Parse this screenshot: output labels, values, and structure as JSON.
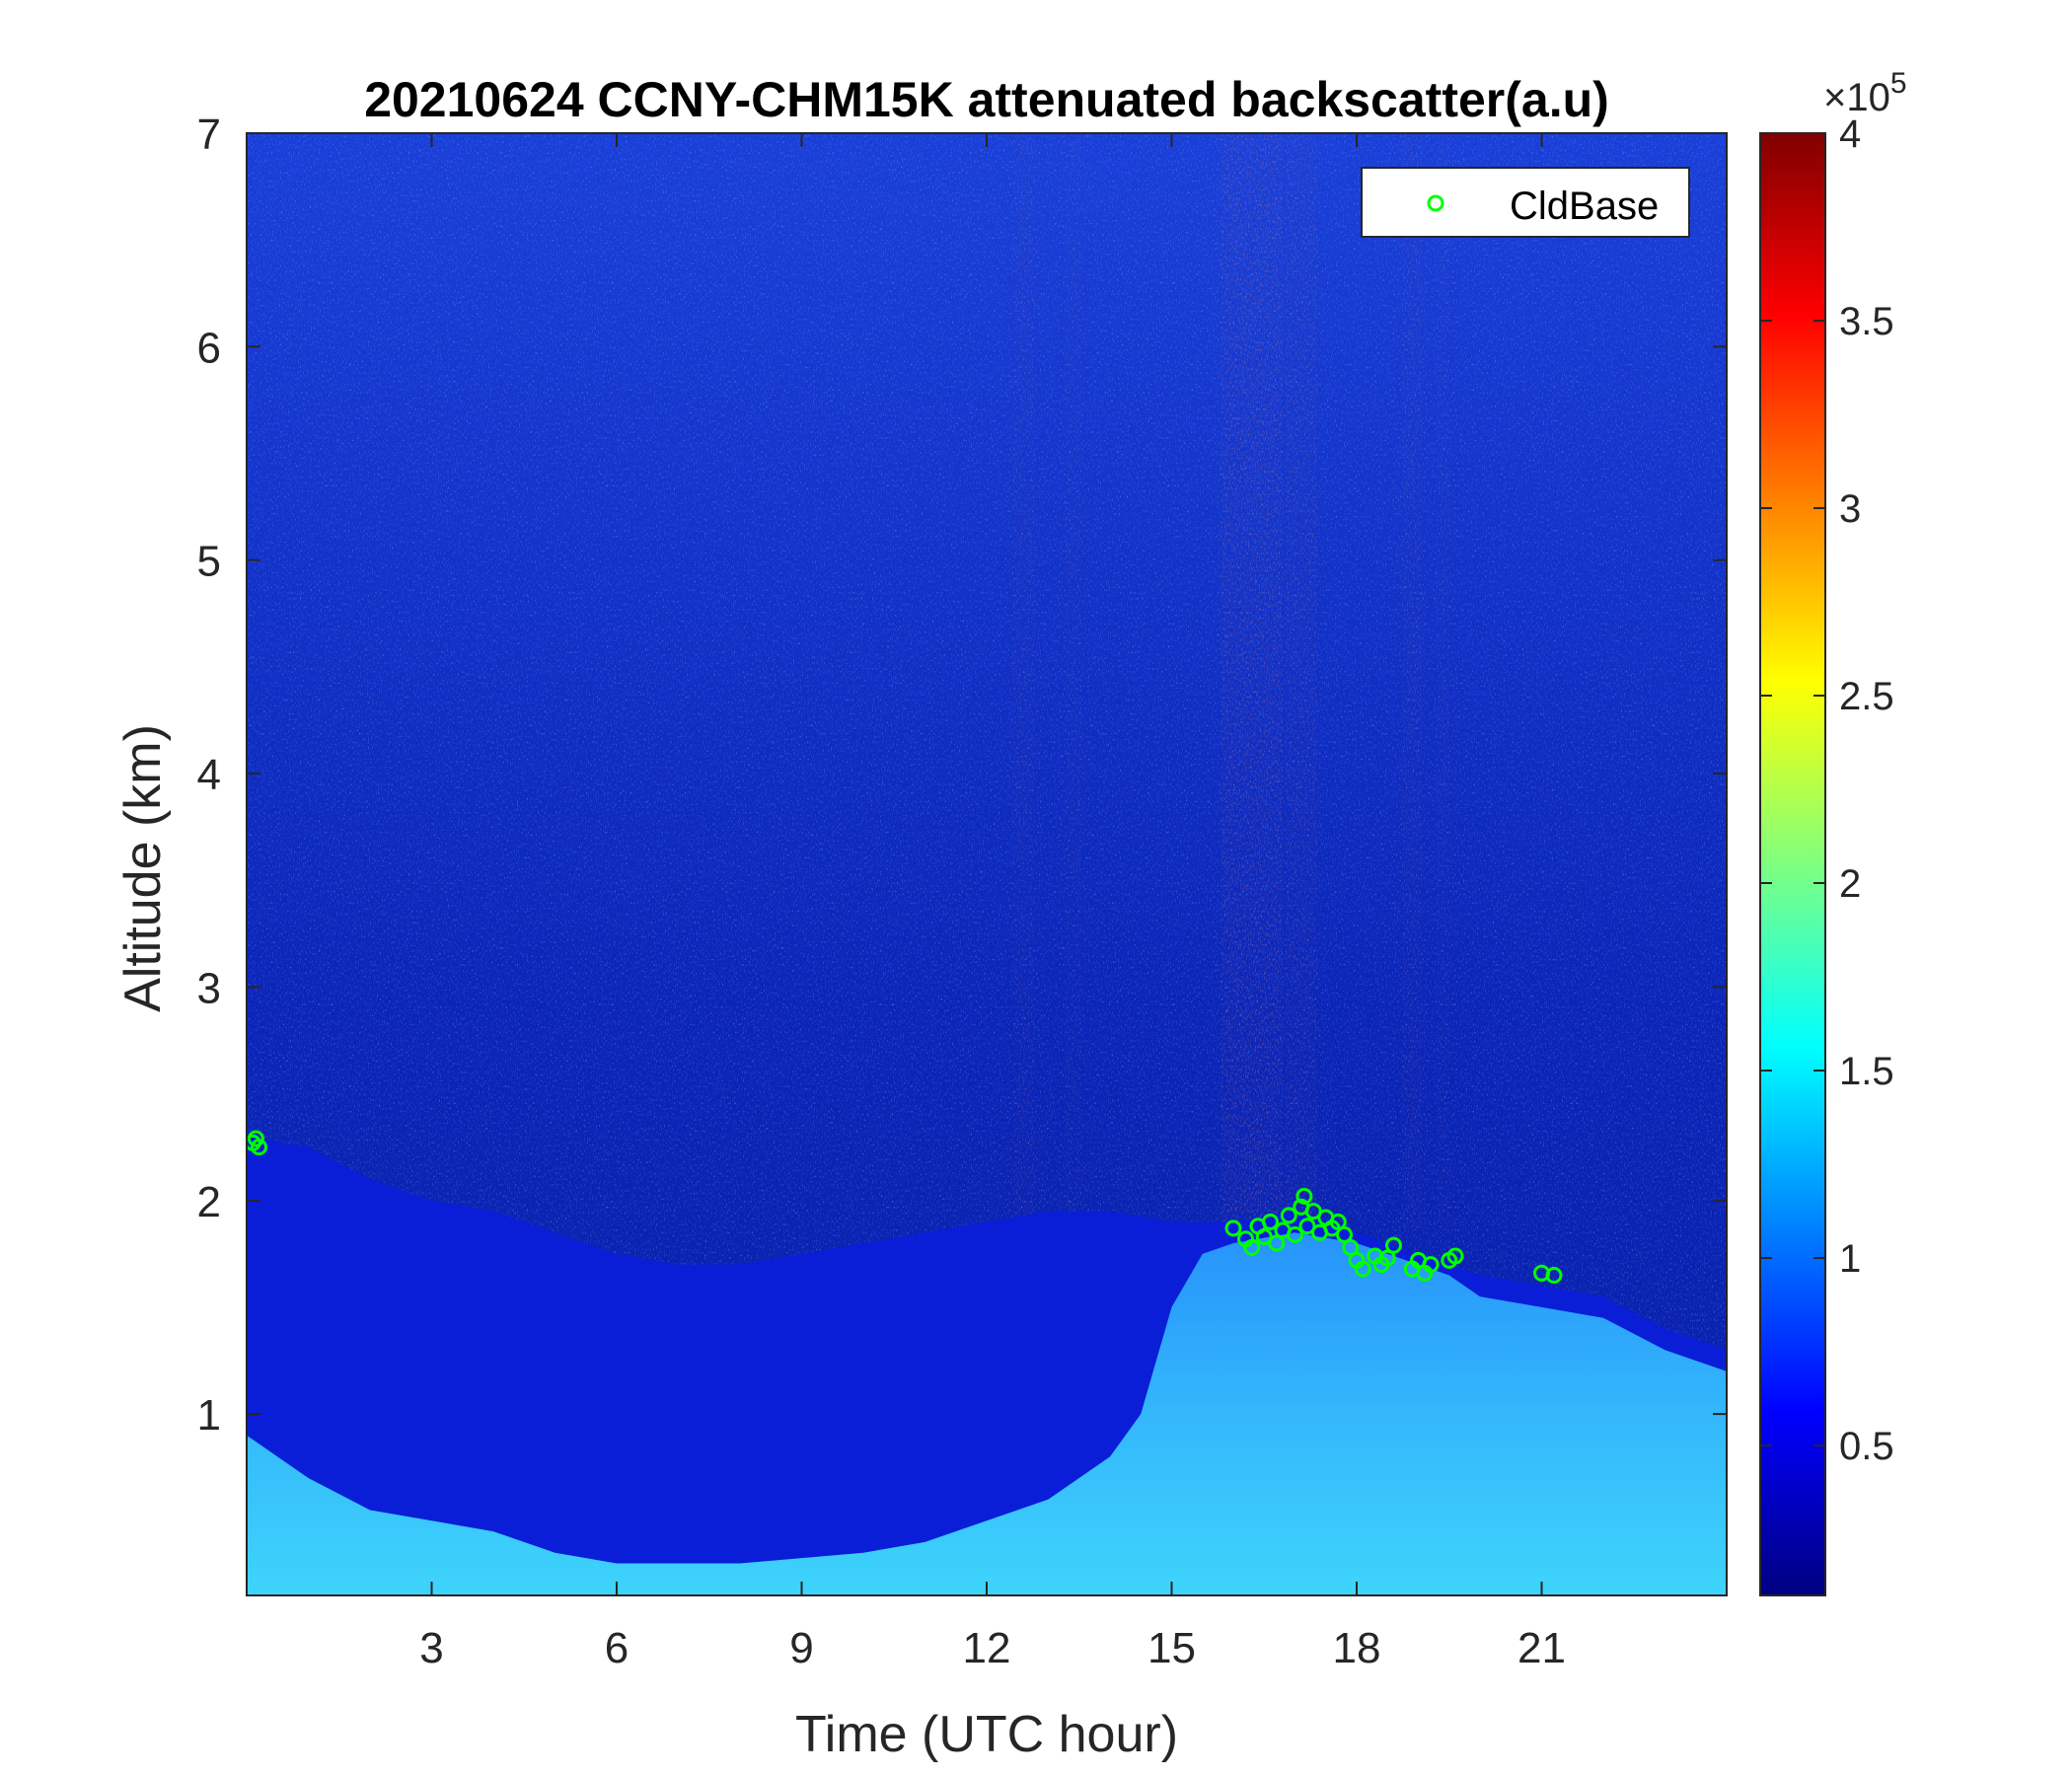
{
  "chart_data": {
    "type": "heatmap",
    "title": "20210624 CCNY-CHM15K attenuated backscatter(a.u)",
    "xlabel": "Time (UTC hour)",
    "ylabel": "Altitude (km)",
    "xlim": [
      0,
      24
    ],
    "ylim": [
      0.15,
      7
    ],
    "xticks": [
      3,
      6,
      9,
      12,
      15,
      18,
      21
    ],
    "yticks": [
      1,
      2,
      3,
      4,
      5,
      6,
      7
    ],
    "colorbar": {
      "colormap": "jet",
      "range": [
        0.1,
        4
      ],
      "ticks": [
        0.5,
        1,
        1.5,
        2,
        2.5,
        3,
        3.5,
        4
      ],
      "multiplier": "×10",
      "exponent": "5"
    },
    "boundary_layer_top_km": [
      [
        0,
        2.3
      ],
      [
        1,
        2.25
      ],
      [
        2,
        2.1
      ],
      [
        3,
        2.0
      ],
      [
        4,
        1.95
      ],
      [
        5,
        1.85
      ],
      [
        6,
        1.75
      ],
      [
        7,
        1.7
      ],
      [
        8,
        1.7
      ],
      [
        9,
        1.75
      ],
      [
        10,
        1.8
      ],
      [
        11,
        1.85
      ],
      [
        12,
        1.9
      ],
      [
        13,
        1.95
      ],
      [
        14,
        1.95
      ],
      [
        15,
        1.9
      ],
      [
        16,
        1.9
      ],
      [
        17,
        1.95
      ],
      [
        18,
        1.85
      ],
      [
        19,
        1.75
      ],
      [
        20,
        1.65
      ],
      [
        21,
        1.6
      ],
      [
        22,
        1.55
      ],
      [
        23,
        1.4
      ],
      [
        24,
        1.3
      ]
    ],
    "enhanced_aerosol_top_km": [
      [
        0,
        0.9
      ],
      [
        1,
        0.7
      ],
      [
        2,
        0.55
      ],
      [
        3,
        0.5
      ],
      [
        4,
        0.45
      ],
      [
        5,
        0.35
      ],
      [
        6,
        0.3
      ],
      [
        8,
        0.3
      ],
      [
        10,
        0.35
      ],
      [
        11,
        0.4
      ],
      [
        12,
        0.5
      ],
      [
        13,
        0.6
      ],
      [
        14,
        0.8
      ],
      [
        14.5,
        1.0
      ],
      [
        15,
        1.5
      ],
      [
        15.5,
        1.75
      ],
      [
        16,
        1.8
      ],
      [
        17,
        1.85
      ],
      [
        18,
        1.8
      ],
      [
        19,
        1.7
      ],
      [
        19.5,
        1.65
      ],
      [
        20,
        1.55
      ],
      [
        21,
        1.5
      ],
      [
        22,
        1.45
      ],
      [
        23,
        1.3
      ],
      [
        24,
        1.2
      ]
    ],
    "series": [
      {
        "name": "CldBase",
        "marker": "circle",
        "color": "#00ff00",
        "points": [
          [
            0.1,
            2.27
          ],
          [
            0.15,
            2.29
          ],
          [
            0.2,
            2.25
          ],
          [
            16.0,
            1.87
          ],
          [
            16.2,
            1.82
          ],
          [
            16.3,
            1.78
          ],
          [
            16.4,
            1.88
          ],
          [
            16.5,
            1.83
          ],
          [
            16.6,
            1.9
          ],
          [
            16.7,
            1.8
          ],
          [
            16.8,
            1.86
          ],
          [
            16.9,
            1.93
          ],
          [
            17.0,
            1.84
          ],
          [
            17.1,
            1.97
          ],
          [
            17.15,
            2.02
          ],
          [
            17.2,
            1.88
          ],
          [
            17.3,
            1.95
          ],
          [
            17.4,
            1.85
          ],
          [
            17.5,
            1.92
          ],
          [
            17.6,
            1.87
          ],
          [
            17.7,
            1.9
          ],
          [
            17.8,
            1.84
          ],
          [
            17.9,
            1.78
          ],
          [
            18.0,
            1.72
          ],
          [
            18.1,
            1.68
          ],
          [
            18.3,
            1.74
          ],
          [
            18.4,
            1.7
          ],
          [
            18.5,
            1.73
          ],
          [
            18.6,
            1.79
          ],
          [
            18.9,
            1.68
          ],
          [
            19.0,
            1.72
          ],
          [
            19.1,
            1.66
          ],
          [
            19.2,
            1.7
          ],
          [
            19.5,
            1.72
          ],
          [
            19.6,
            1.74
          ],
          [
            21.0,
            1.66
          ],
          [
            21.2,
            1.65
          ]
        ]
      }
    ],
    "legend": {
      "entries": [
        "CldBase"
      ],
      "placement": "top-right"
    }
  }
}
